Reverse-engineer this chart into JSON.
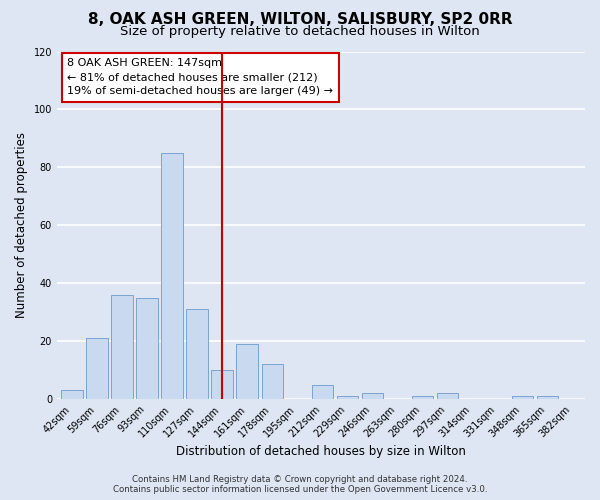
{
  "title": "8, OAK ASH GREEN, WILTON, SALISBURY, SP2 0RR",
  "subtitle": "Size of property relative to detached houses in Wilton",
  "xlabel": "Distribution of detached houses by size in Wilton",
  "ylabel": "Number of detached properties",
  "bar_labels": [
    "42sqm",
    "59sqm",
    "76sqm",
    "93sqm",
    "110sqm",
    "127sqm",
    "144sqm",
    "161sqm",
    "178sqm",
    "195sqm",
    "212sqm",
    "229sqm",
    "246sqm",
    "263sqm",
    "280sqm",
    "297sqm",
    "314sqm",
    "331sqm",
    "348sqm",
    "365sqm",
    "382sqm"
  ],
  "bar_values": [
    3,
    21,
    36,
    35,
    85,
    31,
    10,
    19,
    12,
    0,
    5,
    1,
    2,
    0,
    1,
    2,
    0,
    0,
    1,
    1,
    0
  ],
  "bar_color": "#c9d9f0",
  "bar_edge_color": "#7ba4d4",
  "vline_x": 6,
  "vline_color": "#cc0000",
  "annotation_lines": [
    "8 OAK ASH GREEN: 147sqm",
    "← 81% of detached houses are smaller (212)",
    "19% of semi-detached houses are larger (49) →"
  ],
  "annotation_box_edge": "#cc0000",
  "ylim": [
    0,
    120
  ],
  "yticks": [
    0,
    20,
    40,
    60,
    80,
    100,
    120
  ],
  "bg_color": "#dde6f2",
  "plot_bg_color": "#dde6f2",
  "footer_line1": "Contains HM Land Registry data © Crown copyright and database right 2024.",
  "footer_line2": "Contains public sector information licensed under the Open Government Licence v3.0.",
  "title_fontsize": 11,
  "subtitle_fontsize": 9.5,
  "tick_fontsize": 7,
  "ylabel_fontsize": 8.5,
  "xlabel_fontsize": 8.5,
  "footer_fontsize": 6.2
}
